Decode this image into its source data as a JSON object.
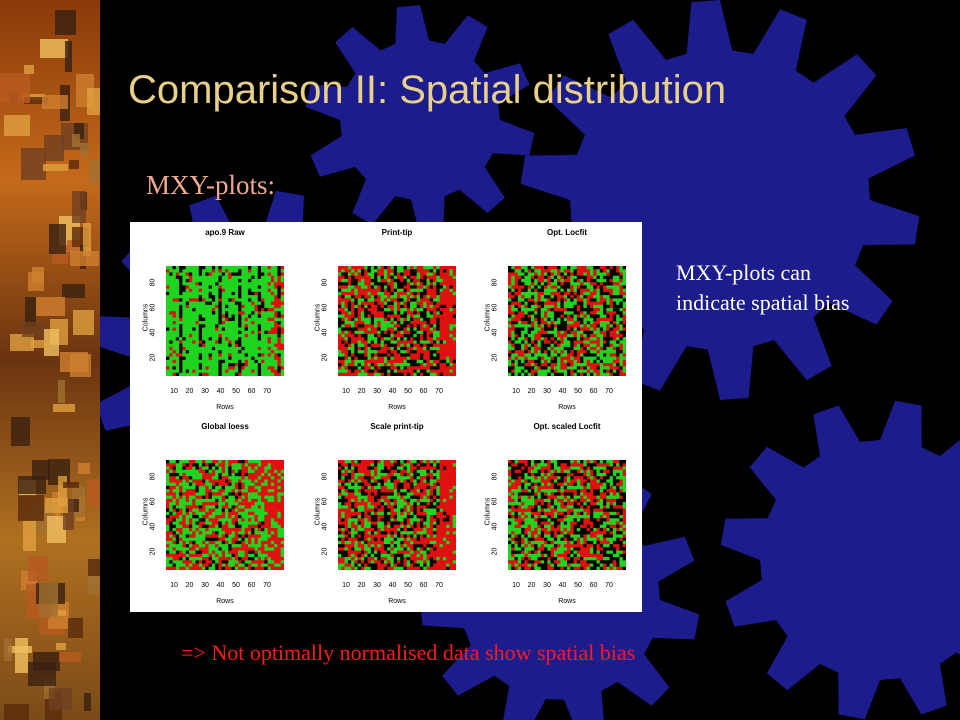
{
  "slide": {
    "title": "Comparison II: Spatial distribution",
    "subtitle": "MXY-plots:",
    "side_note": [
      "MXY-plots can",
      "indicate spatial bias"
    ],
    "conclusion": "=> Not optimally normalised data show spatial bias"
  },
  "colors": {
    "background": "#000000",
    "gear": "#1c1c8c",
    "title": "#e8cf8a",
    "subtitle": "#f0a890",
    "conclusion": "#ff1a1a",
    "heat_green": "#1fd41f",
    "heat_red": "#e01010",
    "heat_black": "#000000"
  },
  "figure": {
    "y_axis_label": "Columns",
    "x_axis_label": "Rows",
    "y_ticks": [
      "20",
      "40",
      "60",
      "80"
    ],
    "x_ticks": [
      "10",
      "20",
      "30",
      "40",
      "50",
      "60",
      "70"
    ],
    "panels": [
      {
        "title": "apo.9 Raw",
        "green_share": 0.8,
        "red_share": 0.1
      },
      {
        "title": "Print-tip",
        "green_share": 0.3,
        "red_share": 0.45
      },
      {
        "title": "Opt. Locfit",
        "green_share": 0.35,
        "red_share": 0.35
      },
      {
        "title": "Global loess",
        "green_share": 0.45,
        "red_share": 0.4
      },
      {
        "title": "Scale print-tip",
        "green_share": 0.3,
        "red_share": 0.45
      },
      {
        "title": "Opt. scaled Locfit",
        "green_share": 0.35,
        "red_share": 0.35
      }
    ]
  }
}
